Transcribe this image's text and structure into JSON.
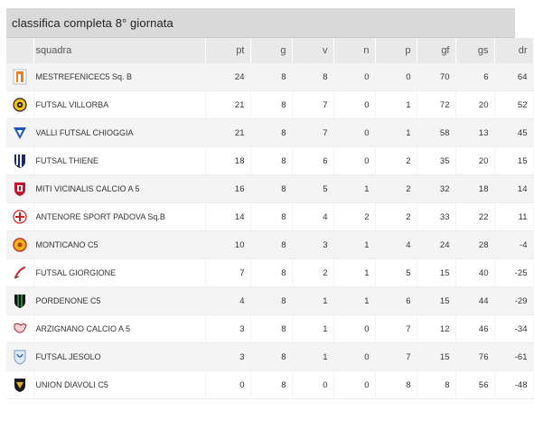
{
  "header": {
    "title": "classifica completa 8° giornata"
  },
  "columns": {
    "team": "squadra",
    "pt": "pt",
    "g": "g",
    "v": "v",
    "n": "n",
    "p": "p",
    "gf": "gf",
    "gs": "gs",
    "dr": "dr"
  },
  "rows": [
    {
      "team": "MESTREFENICEC5 Sq. B",
      "logo": "fenice-logo-icon",
      "pt": "24",
      "g": "8",
      "v": "8",
      "n": "0",
      "p": "0",
      "gf": "70",
      "gs": "6",
      "dr": "64"
    },
    {
      "team": "FUTSAL VILLORBA",
      "logo": "villorba-logo-icon",
      "pt": "21",
      "g": "8",
      "v": "7",
      "n": "0",
      "p": "1",
      "gf": "72",
      "gs": "20",
      "dr": "52"
    },
    {
      "team": "VALLI FUTSAL CHIOGGIA",
      "logo": "chioggia-logo-icon",
      "pt": "21",
      "g": "8",
      "v": "7",
      "n": "0",
      "p": "1",
      "gf": "58",
      "gs": "13",
      "dr": "45"
    },
    {
      "team": "FUTSAL THIENE",
      "logo": "thiene-logo-icon",
      "pt": "18",
      "g": "8",
      "v": "6",
      "n": "0",
      "p": "2",
      "gf": "35",
      "gs": "20",
      "dr": "15"
    },
    {
      "team": "MITI VICINALIS CALCIO A 5",
      "logo": "miti-vicinalis-logo-icon",
      "pt": "16",
      "g": "8",
      "v": "5",
      "n": "1",
      "p": "2",
      "gf": "32",
      "gs": "18",
      "dr": "14"
    },
    {
      "team": "ANTENORE SPORT PADOVA Sq.B",
      "logo": "antenore-logo-icon",
      "pt": "14",
      "g": "8",
      "v": "4",
      "n": "2",
      "p": "2",
      "gf": "33",
      "gs": "22",
      "dr": "11"
    },
    {
      "team": "MONTICANO C5",
      "logo": "monticano-logo-icon",
      "pt": "10",
      "g": "8",
      "v": "3",
      "n": "1",
      "p": "4",
      "gf": "24",
      "gs": "28",
      "dr": "-4"
    },
    {
      "team": "FUTSAL GIORGIONE",
      "logo": "giorgione-logo-icon",
      "pt": "7",
      "g": "8",
      "v": "2",
      "n": "1",
      "p": "5",
      "gf": "15",
      "gs": "40",
      "dr": "-25"
    },
    {
      "team": "PORDENONE C5",
      "logo": "pordenone-logo-icon",
      "pt": "4",
      "g": "8",
      "v": "1",
      "n": "1",
      "p": "6",
      "gf": "15",
      "gs": "44",
      "dr": "-29"
    },
    {
      "team": "ARZIGNANO CALCIO A 5",
      "logo": "arzignano-logo-icon",
      "pt": "3",
      "g": "8",
      "v": "1",
      "n": "0",
      "p": "7",
      "gf": "12",
      "gs": "46",
      "dr": "-34"
    },
    {
      "team": "FUTSAL JESOLO",
      "logo": "jesolo-logo-icon",
      "pt": "3",
      "g": "8",
      "v": "1",
      "n": "0",
      "p": "7",
      "gf": "15",
      "gs": "76",
      "dr": "-61"
    },
    {
      "team": "UNION DIAVOLI C5",
      "logo": "diavoli-logo-icon",
      "pt": "0",
      "g": "8",
      "v": "0",
      "n": "0",
      "p": "8",
      "gf": "8",
      "gs": "56",
      "dr": "-48"
    }
  ]
}
